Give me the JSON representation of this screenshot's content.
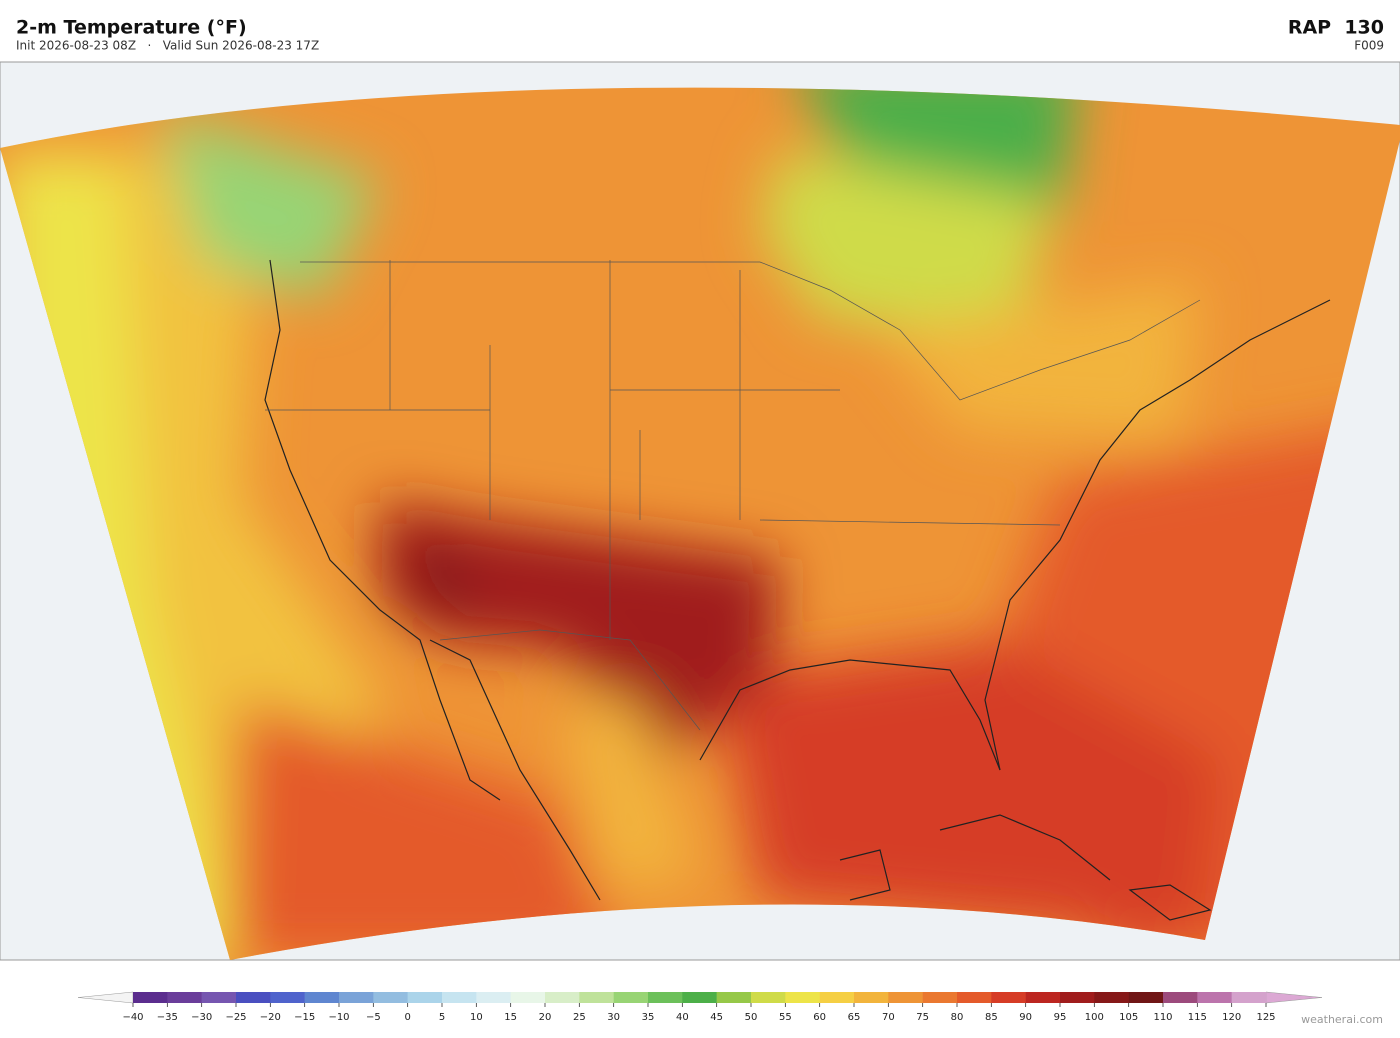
{
  "header": {
    "title": "2-m Temperature  (°F)",
    "subtitle": "Init 2026-08-23 08Z   ·   Valid Sun 2026-08-23 17Z",
    "model": "RAP  130",
    "forecast_hour": "F009"
  },
  "colorbar": {
    "ticks": [
      {
        "value": -40,
        "label": "−40"
      },
      {
        "value": -35,
        "label": "−35"
      },
      {
        "value": -30,
        "label": "−30"
      },
      {
        "value": -25,
        "label": "−25"
      },
      {
        "value": -20,
        "label": "−20"
      },
      {
        "value": -15,
        "label": "−15"
      },
      {
        "value": -10,
        "label": "−10"
      },
      {
        "value": -5,
        "label": "−5"
      },
      0,
      5,
      10,
      15,
      20,
      25,
      30,
      35,
      40,
      45,
      50,
      55,
      60,
      65,
      70,
      75,
      80,
      85,
      90,
      95,
      100,
      105,
      110,
      115,
      120,
      125
    ],
    "colors": [
      "#5b2d8e",
      "#6a3d9a",
      "#7656b0",
      "#4a4fc0",
      "#4f63cc",
      "#5f86d0",
      "#7aa3d8",
      "#93bde0",
      "#abd4ea",
      "#c6e4f0",
      "#dbeef2",
      "#e8f6e8",
      "#d8eec8",
      "#bfe29a",
      "#98d474",
      "#6cc05a",
      "#4caf48",
      "#96c848",
      "#cfdb48",
      "#ede448",
      "#f5cf44",
      "#f2b43c",
      "#ee9436",
      "#ea7830",
      "#e45a2a",
      "#d63c26",
      "#bc2620",
      "#a01c1c",
      "#861818",
      "#701616",
      "#9c4a7c",
      "#bc74ac",
      "#d4a2cc"
    ],
    "under_color": "#f4f4f4",
    "over_color": "#dca8d4"
  },
  "footer": {
    "credit": "weatherai.com"
  }
}
